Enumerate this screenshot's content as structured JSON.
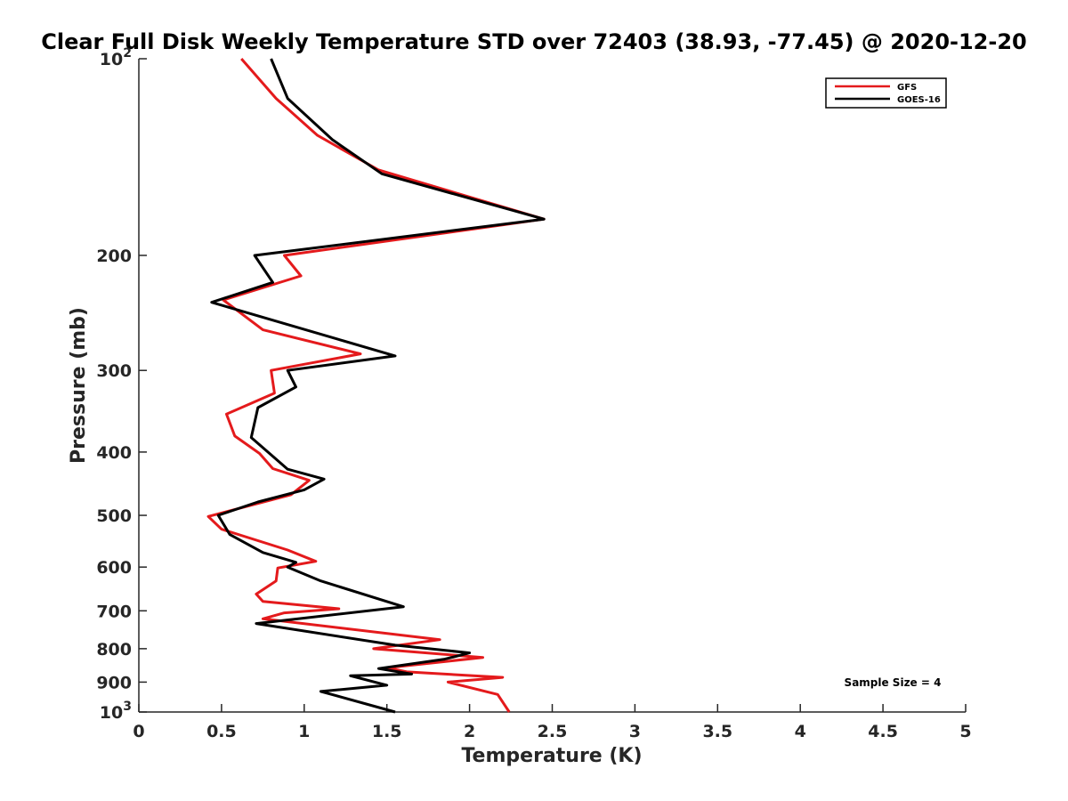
{
  "chart_data": {
    "type": "line",
    "title": "Clear Full Disk Weekly Temperature STD over 72403 (38.93, -77.45) @ 2020-12-20",
    "xlabel": "Temperature (K)",
    "ylabel": "Pressure (mb)",
    "xlim": [
      0,
      5
    ],
    "ylim": [
      100,
      1000
    ],
    "y_scale": "log",
    "y_reversed": true,
    "x_ticks": [
      0,
      0.5,
      1,
      1.5,
      2,
      2.5,
      3,
      3.5,
      4,
      4.5,
      5
    ],
    "x_tick_labels": [
      "0",
      "0.5",
      "1",
      "1.5",
      "2",
      "2.5",
      "3",
      "3.5",
      "4",
      "4.5",
      "5"
    ],
    "y_ticks": [
      100,
      200,
      300,
      400,
      500,
      600,
      700,
      800,
      900,
      1000
    ],
    "y_tick_labels": [
      {
        "base": "10",
        "exp": "2"
      },
      {
        "base": "200",
        "exp": ""
      },
      {
        "base": "300",
        "exp": ""
      },
      {
        "base": "400",
        "exp": ""
      },
      {
        "base": "500",
        "exp": ""
      },
      {
        "base": "600",
        "exp": ""
      },
      {
        "base": "700",
        "exp": ""
      },
      {
        "base": "800",
        "exp": ""
      },
      {
        "base": "900",
        "exp": ""
      },
      {
        "base": "10",
        "exp": "3"
      }
    ],
    "grid": false,
    "legend_position": "top-right",
    "series": [
      {
        "name": "GFS",
        "color": "#e41a1c",
        "points": [
          [
            0.62,
            100
          ],
          [
            0.83,
            115
          ],
          [
            1.08,
            131
          ],
          [
            1.45,
            148
          ],
          [
            2.45,
            176
          ],
          [
            0.88,
            200
          ],
          [
            0.98,
            215
          ],
          [
            0.51,
            234
          ],
          [
            0.75,
            260
          ],
          [
            1.34,
            283
          ],
          [
            0.8,
            300
          ],
          [
            0.82,
            325
          ],
          [
            0.53,
            350
          ],
          [
            0.58,
            378
          ],
          [
            0.73,
            402
          ],
          [
            0.81,
            424
          ],
          [
            1.03,
            442
          ],
          [
            0.92,
            465
          ],
          [
            0.42,
            502
          ],
          [
            0.5,
            525
          ],
          [
            0.9,
            565
          ],
          [
            1.07,
            588
          ],
          [
            0.84,
            602
          ],
          [
            0.83,
            630
          ],
          [
            0.71,
            660
          ],
          [
            0.75,
            677
          ],
          [
            1.21,
            695
          ],
          [
            0.88,
            705
          ],
          [
            0.75,
            720
          ],
          [
            1.82,
            775
          ],
          [
            1.42,
            800
          ],
          [
            2.08,
            825
          ],
          [
            1.5,
            856
          ],
          [
            1.62,
            868
          ],
          [
            2.2,
            885
          ],
          [
            1.87,
            900
          ],
          [
            2.17,
            940
          ],
          [
            2.24,
            1000
          ]
        ]
      },
      {
        "name": "GOES-16",
        "color": "#000000",
        "points": [
          [
            0.8,
            100
          ],
          [
            0.9,
            115
          ],
          [
            1.17,
            133
          ],
          [
            1.47,
            150
          ],
          [
            2.45,
            176
          ],
          [
            0.7,
            200
          ],
          [
            0.81,
            220
          ],
          [
            0.44,
            236
          ],
          [
            1.55,
            285
          ],
          [
            0.9,
            300
          ],
          [
            0.95,
            318
          ],
          [
            0.72,
            342
          ],
          [
            0.68,
            380
          ],
          [
            0.9,
            425
          ],
          [
            1.12,
            440
          ],
          [
            1.0,
            457
          ],
          [
            0.72,
            477
          ],
          [
            0.48,
            500
          ],
          [
            0.55,
            535
          ],
          [
            0.75,
            570
          ],
          [
            0.95,
            590
          ],
          [
            0.9,
            600
          ],
          [
            1.1,
            630
          ],
          [
            1.6,
            690
          ],
          [
            0.71,
            732
          ],
          [
            1.55,
            790
          ],
          [
            2.0,
            812
          ],
          [
            1.85,
            830
          ],
          [
            1.45,
            858
          ],
          [
            1.65,
            875
          ],
          [
            1.28,
            880
          ],
          [
            1.5,
            910
          ],
          [
            1.1,
            930
          ],
          [
            1.55,
            1000
          ]
        ]
      }
    ],
    "annotations": [
      "Sample Size = 4"
    ]
  }
}
